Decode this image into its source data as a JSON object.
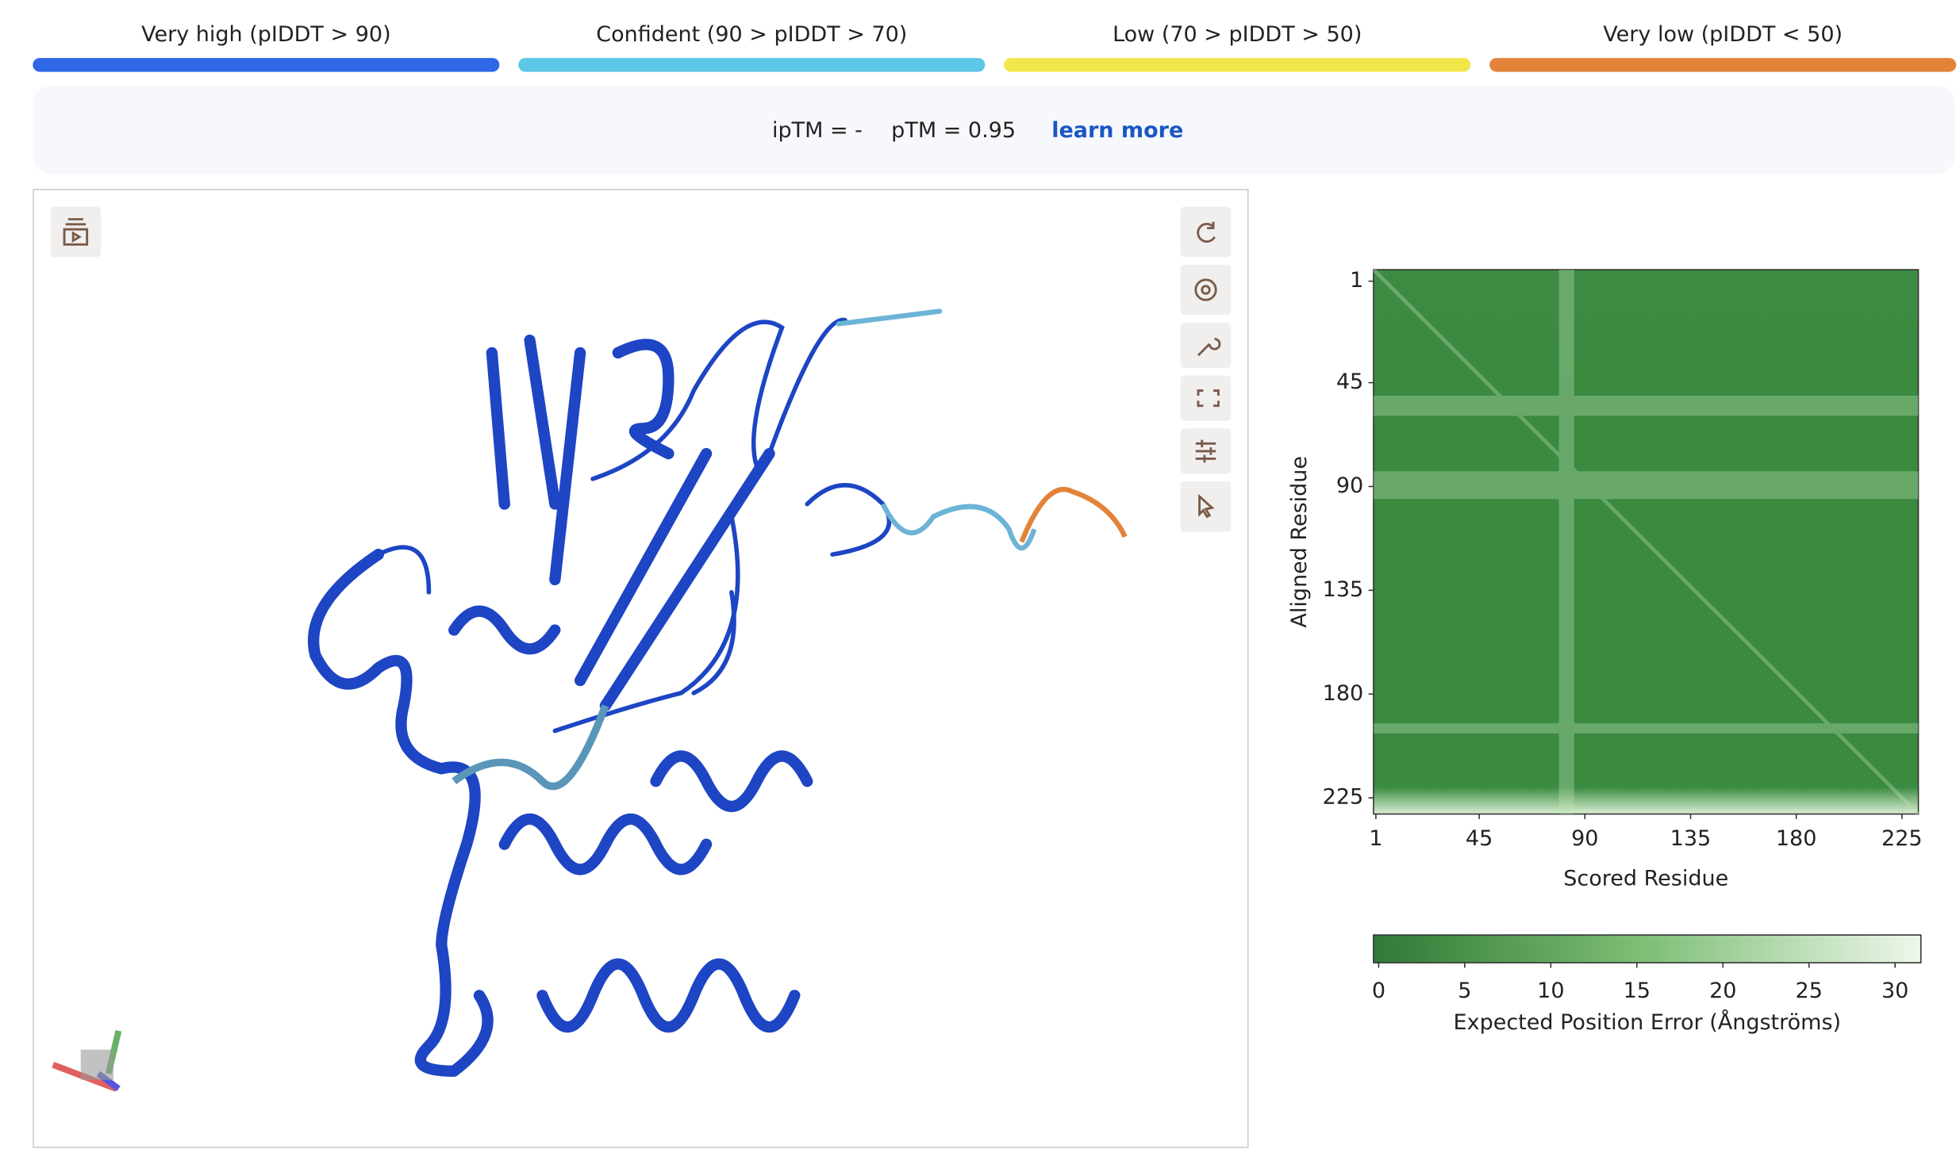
{
  "legend": [
    {
      "label": "Very high (pIDDT > 90)",
      "color": "#2f67e8"
    },
    {
      "label": "Confident (90 > pIDDT > 70)",
      "color": "#5ac8e6"
    },
    {
      "label": "Low (70 > pIDDT > 50)",
      "color": "#f1e64a"
    },
    {
      "label": "Very low (pIDDT < 50)",
      "color": "#e3833a"
    }
  ],
  "metrics": {
    "iptm": "ipTM = -",
    "ptm": "pTM = 0.95",
    "link": "learn more"
  },
  "chart_data": {
    "type": "heatmap",
    "xlabel": "Scored Residue",
    "ylabel": "Aligned Residue",
    "xlim": [
      0,
      232
    ],
    "ylim": [
      -4,
      232
    ],
    "xticks": [
      1,
      45,
      90,
      135,
      180,
      225
    ],
    "yticks": [
      1,
      45,
      90,
      135,
      180,
      225
    ],
    "colorbar": {
      "label": "Expected Position Error (Ångströms)",
      "lim": [
        -0.3,
        31.5
      ],
      "ticks": [
        0,
        5,
        10,
        15,
        20,
        25,
        30
      ],
      "colors": [
        "#2f7a35",
        "#7fbf77",
        "#eef7ea"
      ]
    }
  }
}
